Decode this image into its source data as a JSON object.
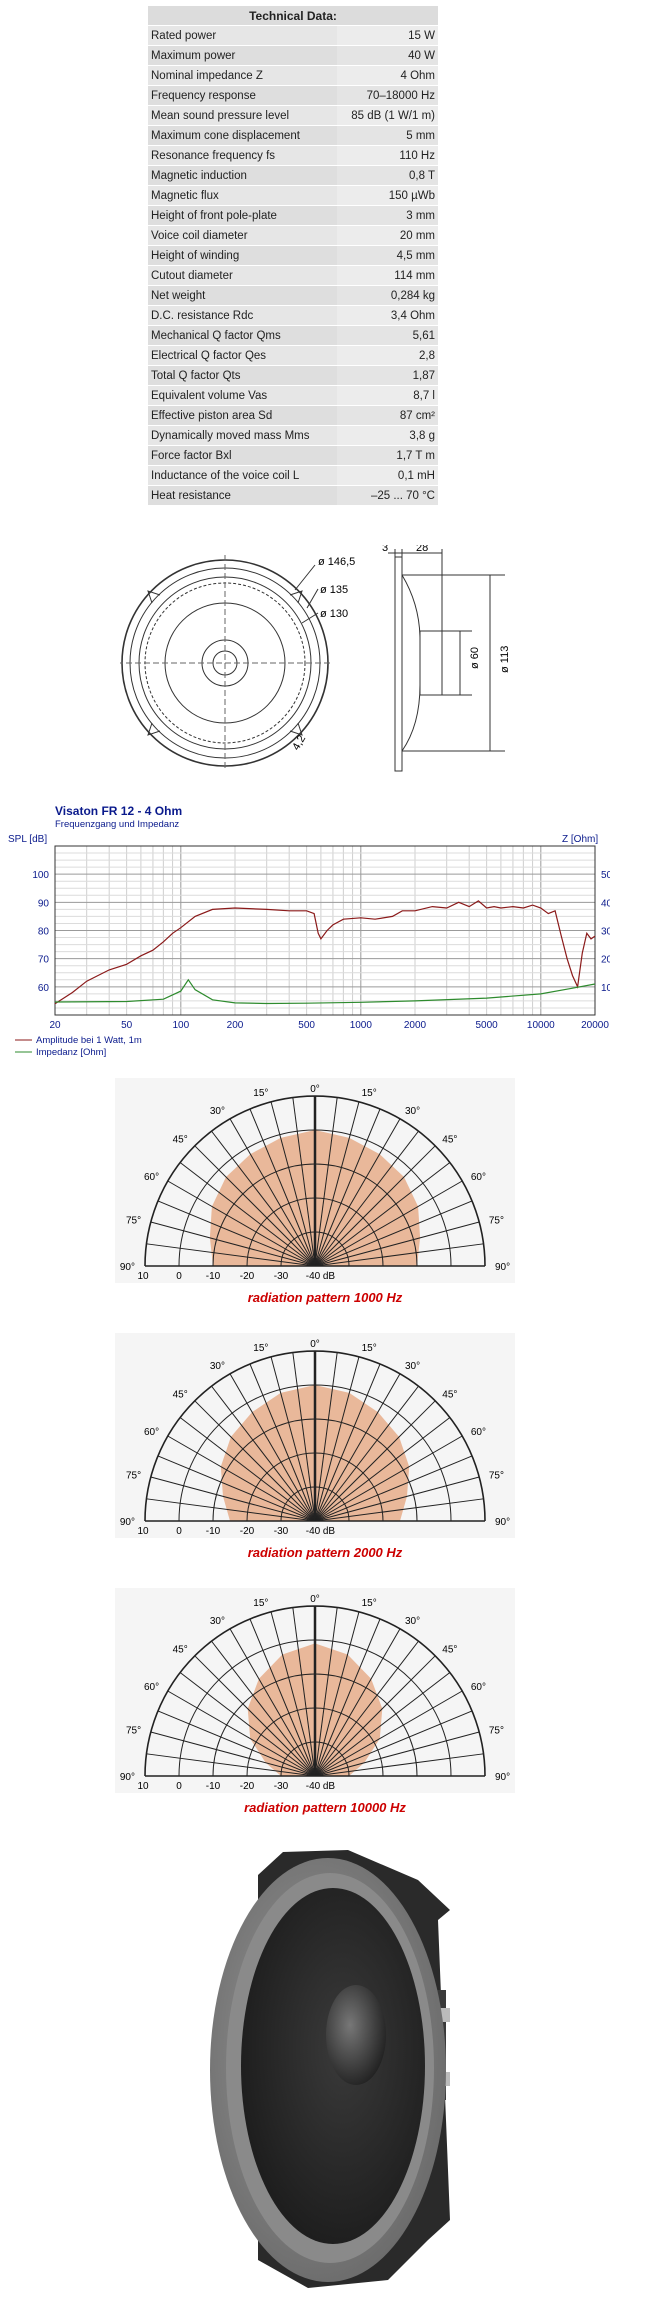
{
  "spec": {
    "title": "Technical Data:",
    "rows": [
      {
        "k": "Rated power",
        "v": "15 W"
      },
      {
        "k": "Maximum power",
        "v": "40 W"
      },
      {
        "k": "Nominal impedance Z",
        "v": "4 Ohm"
      },
      {
        "k": "Frequency response",
        "v": "70–18000 Hz"
      },
      {
        "k": "Mean sound pressure level",
        "v": "85 dB (1 W/1 m)"
      },
      {
        "k": "Maximum cone displacement",
        "v": "5 mm"
      },
      {
        "k": "Resonance frequency fs",
        "v": "110 Hz"
      },
      {
        "k": "Magnetic induction",
        "v": "0,8 T"
      },
      {
        "k": "Magnetic flux",
        "v": "150 µWb"
      },
      {
        "k": "Height of front pole-plate",
        "v": "3 mm"
      },
      {
        "k": "Voice coil diameter",
        "v": "20 mm"
      },
      {
        "k": "Height of winding",
        "v": "4,5 mm"
      },
      {
        "k": "Cutout diameter",
        "v": "114 mm"
      },
      {
        "k": "Net weight",
        "v": "0,284 kg"
      },
      {
        "k": "D.C. resistance Rdc",
        "v": "3,4 Ohm"
      },
      {
        "k": "Mechanical Q factor Qms",
        "v": "5,61"
      },
      {
        "k": "Electrical Q factor Qes",
        "v": "2,8"
      },
      {
        "k": "Total Q factor Qts",
        "v": "1,87"
      },
      {
        "k": "Equivalent volume Vas",
        "v": "8,7 l"
      },
      {
        "k": "Effective piston area Sd",
        "v": "87 cm²"
      },
      {
        "k": "Dynamically moved mass Mms",
        "v": "3,8 g"
      },
      {
        "k": "Force factor Bxl",
        "v": "1,7 T m"
      },
      {
        "k": "Inductance of the voice coil L",
        "v": "0,1 mH"
      },
      {
        "k": "Heat resistance",
        "v": "–25 ... 70 °C"
      }
    ]
  },
  "drawing": {
    "d1": "ø 146,5",
    "d2": "ø 135",
    "d3": "ø 130",
    "hole": "4,2",
    "dim_top_a": "3",
    "dim_top_b": "28",
    "d_magnet": "ø 60",
    "d_outer": "ø 113"
  },
  "chart_data": [
    {
      "type": "line",
      "title": "Visaton FR 12 - 4 Ohm",
      "subtitle": "Frequenzgang und Impedanz",
      "ylabel": "SPL [dB]",
      "y2label": "Z [Ohm]",
      "xscale": "log",
      "xlim": [
        20,
        20000
      ],
      "ylim": [
        50,
        110
      ],
      "y2lim": [
        0,
        60
      ],
      "x_ticks": [
        "20",
        "50",
        "100",
        "200",
        "500",
        "1000",
        "2000",
        "5000",
        "10000",
        "20000"
      ],
      "y_ticks": [
        "60",
        "70",
        "80",
        "90",
        "100"
      ],
      "y2_ticks": [
        "10",
        "20",
        "30",
        "40",
        "50"
      ],
      "grid": true,
      "legend": [
        "Amplitude bei 1 Watt, 1m",
        "Impedanz [Ohm]"
      ],
      "series": [
        {
          "name": "Amplitude bei 1 Watt, 1m",
          "color": "#8b1a1a",
          "axis": "left",
          "x": [
            20,
            25,
            30,
            40,
            50,
            60,
            70,
            80,
            90,
            100,
            120,
            150,
            200,
            300,
            400,
            500,
            550,
            580,
            600,
            650,
            700,
            800,
            1000,
            1200,
            1500,
            1700,
            2000,
            2500,
            3000,
            3500,
            4000,
            4500,
            5000,
            5500,
            6000,
            7000,
            8000,
            9000,
            10000,
            11000,
            12000,
            13000,
            14000,
            15000,
            16000,
            17000,
            18000,
            19000,
            20000
          ],
          "y": [
            54,
            58,
            62,
            66,
            68,
            71,
            73,
            76,
            79,
            81,
            85,
            87.5,
            88,
            87.5,
            87,
            87,
            86,
            79,
            77,
            80,
            82,
            84,
            84.5,
            84,
            85,
            87,
            87,
            88.5,
            88,
            90,
            88.5,
            90.5,
            88,
            88.5,
            88,
            88.5,
            88,
            89,
            88,
            86,
            87,
            78,
            70,
            64,
            60,
            72,
            79,
            77,
            78
          ]
        },
        {
          "name": "Impedanz [Ohm]",
          "color": "#2e8b2e",
          "axis": "right",
          "x": [
            20,
            50,
            80,
            100,
            110,
            120,
            150,
            200,
            300,
            500,
            1000,
            2000,
            5000,
            10000,
            15000,
            20000
          ],
          "y": [
            4.6,
            4.8,
            5.6,
            8.5,
            12.5,
            9,
            5.4,
            4.3,
            4.1,
            4.2,
            4.5,
            5,
            6,
            7.5,
            9.5,
            11
          ]
        }
      ]
    },
    {
      "type": "polar",
      "title": "radiation pattern 1000 Hz",
      "angles": [
        "0°",
        "15°",
        "30°",
        "45°",
        "60°",
        "75°",
        "90°"
      ],
      "r_ticks": [
        "10",
        "0",
        "-10",
        "-20",
        "-30",
        "-40",
        "dB"
      ],
      "theta": [
        0,
        15,
        30,
        45,
        60,
        75,
        90
      ],
      "values_db": [
        0,
        -1,
        -2,
        -3,
        -5,
        -8,
        -10
      ]
    },
    {
      "type": "polar",
      "title": "radiation pattern 2000 Hz",
      "angles": [
        "0°",
        "15°",
        "30°",
        "45°",
        "60°",
        "75°",
        "90°"
      ],
      "r_ticks": [
        "10",
        "0",
        "-10",
        "-20",
        "-30",
        "-40",
        "dB"
      ],
      "theta": [
        0,
        15,
        30,
        45,
        60,
        75,
        90
      ],
      "values_db": [
        0,
        -1,
        -3,
        -5,
        -8,
        -12,
        -15
      ]
    },
    {
      "type": "polar",
      "title": "radiation pattern 10000 Hz",
      "angles": [
        "0°",
        "15°",
        "30°",
        "45°",
        "60°",
        "75°",
        "90°"
      ],
      "r_ticks": [
        "10",
        "0",
        "-10",
        "-20",
        "-30",
        "-40",
        "dB"
      ],
      "theta": [
        0,
        15,
        30,
        45,
        60,
        75,
        90
      ],
      "values_db": [
        -1,
        -3,
        -7,
        -12,
        -18,
        -25,
        -30
      ]
    }
  ]
}
